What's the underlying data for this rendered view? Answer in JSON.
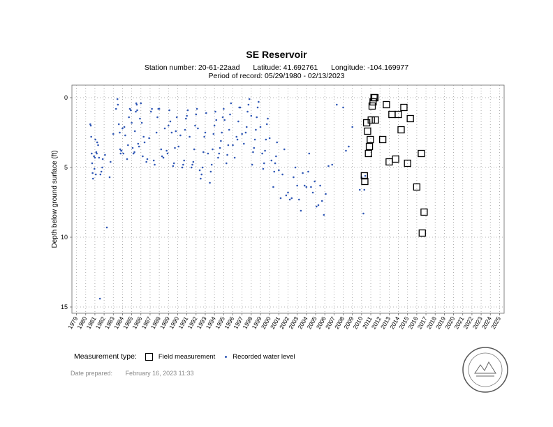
{
  "header": {
    "title": "SE Reservoir",
    "station_number": "Station number: 20-61-22aad",
    "latitude": "Latitude: 41.692761",
    "longitude": "Longitude: -104.169977",
    "period": "Period of record: 05/29/1980 - 02/13/2023"
  },
  "legend": {
    "title": "Measurement type:",
    "field": "Field measurement",
    "recorded": "Recorded water level"
  },
  "footer": {
    "date_label": "Date prepared:",
    "date_value": "February 16, 2023 11:33"
  },
  "seal": {
    "text": "Wyoming State Engineer's Office",
    "color": "#555555"
  },
  "colors": {
    "recorded": "#2f57b5",
    "field": "#000000",
    "grid": "#9a9a9a"
  },
  "chart_data": {
    "type": "scatter",
    "ylabel": "Depth below ground surface (ft)",
    "y_inverted": true,
    "xlim": [
      1978.5,
      2025.5
    ],
    "ylim": [
      0,
      15
    ],
    "yticks": [
      0,
      5,
      10,
      15
    ],
    "xticks": [
      1979,
      1980,
      1981,
      1982,
      1983,
      1984,
      1985,
      1986,
      1987,
      1988,
      1989,
      1990,
      1991,
      1992,
      1993,
      1994,
      1995,
      1996,
      1997,
      1998,
      1999,
      2000,
      2001,
      2002,
      2003,
      2004,
      2005,
      2006,
      2007,
      2008,
      2009,
      2010,
      2011,
      2012,
      2013,
      2014,
      2015,
      2016,
      2017,
      2018,
      2019,
      2020,
      2021,
      2022,
      2023,
      2024,
      2025
    ],
    "series": [
      {
        "name": "Recorded water level",
        "marker": "dot",
        "points": [
          [
            1980.5,
            1.9
          ],
          [
            1980.55,
            2.0
          ],
          [
            1980.6,
            2.8
          ],
          [
            1980.65,
            4.0
          ],
          [
            1980.7,
            4.7
          ],
          [
            1980.75,
            5.4
          ],
          [
            1980.8,
            5.8
          ],
          [
            1980.9,
            4.2
          ],
          [
            1980.95,
            5.1
          ],
          [
            1981.0,
            4.3
          ],
          [
            1981.05,
            3.0
          ],
          [
            1981.1,
            5.5
          ],
          [
            1981.15,
            3.9
          ],
          [
            1981.2,
            4.0
          ],
          [
            1981.25,
            3.2
          ],
          [
            1981.35,
            3.4
          ],
          [
            1981.45,
            4.3
          ],
          [
            1981.55,
            14.4
          ],
          [
            1981.6,
            5.5
          ],
          [
            1981.7,
            5.3
          ],
          [
            1981.8,
            5.0
          ],
          [
            1981.85,
            4.4
          ],
          [
            1982.1,
            4.1
          ],
          [
            1982.3,
            9.3
          ],
          [
            1982.6,
            5.7
          ],
          [
            1982.7,
            4.6
          ],
          [
            1983.0,
            2.6
          ],
          [
            1983.3,
            0.8
          ],
          [
            1983.45,
            0.1
          ],
          [
            1983.5,
            0.5
          ],
          [
            1983.6,
            1.9
          ],
          [
            1983.7,
            2.5
          ],
          [
            1983.75,
            3.7
          ],
          [
            1983.8,
            4.0
          ],
          [
            1983.85,
            3.8
          ],
          [
            1983.9,
            3.8
          ],
          [
            1984.0,
            2.2
          ],
          [
            1984.1,
            4.0
          ],
          [
            1984.2,
            2.1
          ],
          [
            1984.3,
            2.7
          ],
          [
            1984.5,
            4.4
          ],
          [
            1984.6,
            3.4
          ],
          [
            1984.7,
            1.4
          ],
          [
            1984.8,
            0.8
          ],
          [
            1984.9,
            0.9
          ],
          [
            1985.0,
            1.8
          ],
          [
            1985.1,
            3.6
          ],
          [
            1985.2,
            4.0
          ],
          [
            1985.3,
            3.9
          ],
          [
            1985.35,
            2.4
          ],
          [
            1985.45,
            1.0
          ],
          [
            1985.5,
            0.4
          ],
          [
            1985.55,
            0.5
          ],
          [
            1985.6,
            0.9
          ],
          [
            1985.7,
            3.3
          ],
          [
            1985.8,
            3.5
          ],
          [
            1985.9,
            1.5
          ],
          [
            1986.0,
            0.4
          ],
          [
            1986.1,
            1.8
          ],
          [
            1986.2,
            4.2
          ],
          [
            1986.3,
            2.8
          ],
          [
            1986.4,
            3.2
          ],
          [
            1986.6,
            4.6
          ],
          [
            1986.7,
            4.4
          ],
          [
            1986.9,
            2.9
          ],
          [
            1987.1,
            1.0
          ],
          [
            1987.2,
            0.8
          ],
          [
            1987.4,
            4.5
          ],
          [
            1987.5,
            4.8
          ],
          [
            1987.7,
            2.5
          ],
          [
            1987.8,
            1.4
          ],
          [
            1987.9,
            0.8
          ],
          [
            1988.0,
            0.8
          ],
          [
            1988.2,
            3.7
          ],
          [
            1988.3,
            4.2
          ],
          [
            1988.45,
            4.3
          ],
          [
            1988.6,
            2.2
          ],
          [
            1988.8,
            3.8
          ],
          [
            1988.9,
            4.0
          ],
          [
            1989.0,
            2.0
          ],
          [
            1989.1,
            0.9
          ],
          [
            1989.2,
            1.7
          ],
          [
            1989.35,
            2.5
          ],
          [
            1989.5,
            4.9
          ],
          [
            1989.6,
            4.7
          ],
          [
            1989.7,
            3.6
          ],
          [
            1989.8,
            2.4
          ],
          [
            1989.9,
            1.4
          ],
          [
            1990.1,
            3.5
          ],
          [
            1990.3,
            2.7
          ],
          [
            1990.5,
            5.0
          ],
          [
            1990.6,
            4.8
          ],
          [
            1990.7,
            4.5
          ],
          [
            1990.8,
            2.3
          ],
          [
            1990.9,
            1.5
          ],
          [
            1991.0,
            1.3
          ],
          [
            1991.1,
            0.9
          ],
          [
            1991.3,
            2.8
          ],
          [
            1991.5,
            5.0
          ],
          [
            1991.6,
            4.8
          ],
          [
            1991.7,
            4.6
          ],
          [
            1991.8,
            3.7
          ],
          [
            1991.9,
            2.0
          ],
          [
            1992.0,
            1.2
          ],
          [
            1992.1,
            0.8
          ],
          [
            1992.2,
            2.2
          ],
          [
            1992.4,
            5.2
          ],
          [
            1992.5,
            5.8
          ],
          [
            1992.6,
            5.5
          ],
          [
            1992.7,
            5.0
          ],
          [
            1992.8,
            3.9
          ],
          [
            1992.9,
            2.8
          ],
          [
            1993.0,
            2.5
          ],
          [
            1993.1,
            1.1
          ],
          [
            1993.3,
            4.0
          ],
          [
            1993.5,
            6.1
          ],
          [
            1993.6,
            5.3
          ],
          [
            1993.7,
            4.8
          ],
          [
            1993.8,
            3.7
          ],
          [
            1993.9,
            2.6
          ],
          [
            1994.0,
            2.0
          ],
          [
            1994.1,
            1.0
          ],
          [
            1994.2,
            1.6
          ],
          [
            1994.4,
            4.3
          ],
          [
            1994.5,
            4.0
          ],
          [
            1994.6,
            3.6
          ],
          [
            1994.7,
            3.1
          ],
          [
            1994.8,
            2.5
          ],
          [
            1994.9,
            1.4
          ],
          [
            1995.0,
            0.8
          ],
          [
            1995.1,
            1.6
          ],
          [
            1995.3,
            4.7
          ],
          [
            1995.4,
            4.1
          ],
          [
            1995.5,
            3.4
          ],
          [
            1995.6,
            2.3
          ],
          [
            1995.7,
            1.2
          ],
          [
            1995.8,
            0.4
          ],
          [
            1996.0,
            3.4
          ],
          [
            1996.2,
            4.3
          ],
          [
            1996.4,
            2.8
          ],
          [
            1996.5,
            3.0
          ],
          [
            1996.6,
            1.7
          ],
          [
            1996.7,
            0.7
          ],
          [
            1996.8,
            0.7
          ],
          [
            1997.0,
            2.6
          ],
          [
            1997.2,
            3.3
          ],
          [
            1997.4,
            2.5
          ],
          [
            1997.5,
            2.1
          ],
          [
            1997.6,
            1.0
          ],
          [
            1997.7,
            0.5
          ],
          [
            1997.8,
            0.1
          ],
          [
            1998.0,
            1.3
          ],
          [
            1998.1,
            4.8
          ],
          [
            1998.2,
            3.9
          ],
          [
            1998.3,
            3.6
          ],
          [
            1998.4,
            3.0
          ],
          [
            1998.5,
            2.3
          ],
          [
            1998.6,
            1.4
          ],
          [
            1998.7,
            0.7
          ],
          [
            1998.8,
            0.3
          ],
          [
            1999.0,
            2.1
          ],
          [
            1999.2,
            4.0
          ],
          [
            1999.3,
            5.1
          ],
          [
            1999.4,
            4.7
          ],
          [
            1999.5,
            3.8
          ],
          [
            1999.6,
            3.0
          ],
          [
            1999.7,
            1.9
          ],
          [
            1999.8,
            1.5
          ],
          [
            2000.0,
            2.9
          ],
          [
            2000.2,
            4.5
          ],
          [
            2000.4,
            6.4
          ],
          [
            2000.5,
            5.3
          ],
          [
            2000.6,
            4.7
          ],
          [
            2000.7,
            4.2
          ],
          [
            2000.8,
            3.2
          ],
          [
            2001.0,
            5.2
          ],
          [
            2001.2,
            7.2
          ],
          [
            2001.4,
            5.5
          ],
          [
            2001.6,
            3.7
          ],
          [
            2001.8,
            7.0
          ],
          [
            2002.0,
            6.8
          ],
          [
            2002.2,
            7.3
          ],
          [
            2002.4,
            7.2
          ],
          [
            2002.6,
            5.7
          ],
          [
            2002.8,
            5.0
          ],
          [
            2003.0,
            6.3
          ],
          [
            2003.2,
            7.3
          ],
          [
            2003.4,
            8.1
          ],
          [
            2003.6,
            5.4
          ],
          [
            2003.8,
            6.3
          ],
          [
            2004.0,
            6.4
          ],
          [
            2004.2,
            5.3
          ],
          [
            2004.3,
            4.0
          ],
          [
            2004.5,
            6.4
          ],
          [
            2004.7,
            6.8
          ],
          [
            2004.9,
            6.0
          ],
          [
            2005.1,
            7.8
          ],
          [
            2005.3,
            7.7
          ],
          [
            2005.5,
            6.3
          ],
          [
            2005.7,
            7.4
          ],
          [
            2005.9,
            8.4
          ],
          [
            2006.1,
            6.9
          ],
          [
            2006.4,
            4.9
          ],
          [
            2006.8,
            4.8
          ],
          [
            2007.3,
            0.5
          ],
          [
            2008.0,
            0.7
          ],
          [
            2008.3,
            3.8
          ],
          [
            2008.6,
            3.5
          ],
          [
            2009.0,
            2.1
          ],
          [
            2009.8,
            6.6
          ],
          [
            2010.0,
            5.7
          ],
          [
            2010.2,
            8.3
          ],
          [
            2010.3,
            6.6
          ],
          [
            2010.4,
            5.6
          ]
        ]
      },
      {
        "name": "Field measurement",
        "marker": "square",
        "points": [
          [
            2010.3,
            5.6
          ],
          [
            2010.35,
            6.0
          ],
          [
            2010.55,
            1.8
          ],
          [
            2010.65,
            2.4
          ],
          [
            2010.75,
            4.0
          ],
          [
            2010.85,
            3.5
          ],
          [
            2010.95,
            3.0
          ],
          [
            2011.05,
            1.6
          ],
          [
            2011.15,
            0.6
          ],
          [
            2011.25,
            0.3
          ],
          [
            2011.35,
            0.0
          ],
          [
            2011.45,
            0.0
          ],
          [
            2011.5,
            1.6
          ],
          [
            2012.3,
            3.0
          ],
          [
            2012.7,
            0.5
          ],
          [
            2013.0,
            4.6
          ],
          [
            2013.3,
            1.2
          ],
          [
            2013.7,
            4.4
          ],
          [
            2014.0,
            1.2
          ],
          [
            2014.3,
            2.3
          ],
          [
            2014.6,
            0.7
          ],
          [
            2015.0,
            4.7
          ],
          [
            2015.3,
            1.5
          ],
          [
            2016.0,
            6.4
          ],
          [
            2016.5,
            4.0
          ],
          [
            2016.8,
            8.2
          ],
          [
            2016.6,
            9.7
          ]
        ]
      }
    ]
  }
}
